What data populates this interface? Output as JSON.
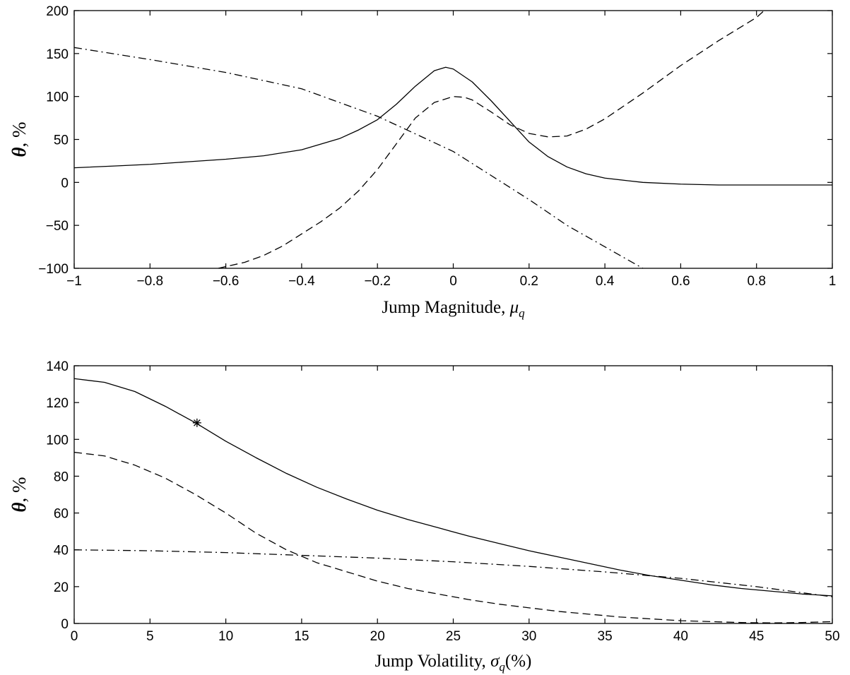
{
  "chart_data": [
    {
      "type": "line",
      "title": "",
      "xlabel": "Jump Magnitude, ",
      "xlabel_symbol": "μ",
      "xlabel_sub": "q",
      "xlabel_tail": "",
      "ylabel_symbol": "θ",
      "ylabel_tail": ", %",
      "xlim": [
        -1,
        1
      ],
      "ylim": [
        -100,
        200
      ],
      "xticks": [
        -1,
        -0.8,
        -0.6,
        -0.4,
        -0.2,
        0,
        0.2,
        0.4,
        0.6,
        0.8,
        1
      ],
      "xtick_labels": [
        "−1",
        "−0.8",
        "−0.6",
        "−0.4",
        "−0.2",
        "0",
        "0.2",
        "0.4",
        "0.6",
        "0.8",
        "1"
      ],
      "yticks": [
        -100,
        -50,
        0,
        50,
        100,
        150,
        200
      ],
      "ytick_labels": [
        "−100",
        "−50",
        "0",
        "50",
        "100",
        "150",
        "200"
      ],
      "grid": false,
      "series": [
        {
          "style": "solid",
          "x": [
            -1,
            -0.9,
            -0.8,
            -0.7,
            -0.6,
            -0.5,
            -0.4,
            -0.3,
            -0.25,
            -0.2,
            -0.15,
            -0.1,
            -0.05,
            -0.02,
            0,
            0.05,
            0.1,
            0.15,
            0.2,
            0.25,
            0.3,
            0.35,
            0.4,
            0.5,
            0.6,
            0.7,
            0.8,
            0.9,
            1
          ],
          "y": [
            17,
            19,
            21,
            24,
            27,
            31,
            38,
            51,
            61,
            73,
            91,
            112,
            130,
            134,
            132,
            117,
            95,
            71,
            47,
            30,
            18,
            10,
            5,
            0,
            -2,
            -3,
            -3,
            -3,
            -3
          ]
        },
        {
          "style": "dashed",
          "x": [
            -0.62,
            -0.55,
            -0.5,
            -0.45,
            -0.4,
            -0.35,
            -0.3,
            -0.25,
            -0.2,
            -0.15,
            -0.1,
            -0.05,
            0,
            0.03,
            0.05,
            0.1,
            0.15,
            0.2,
            0.25,
            0.3,
            0.35,
            0.4,
            0.5,
            0.6,
            0.7,
            0.8,
            0.82
          ],
          "y": [
            -100,
            -93,
            -85,
            -74,
            -60,
            -46,
            -30,
            -10,
            15,
            45,
            75,
            93,
            100,
            99,
            96,
            82,
            67,
            57,
            53,
            54,
            62,
            74,
            104,
            136,
            165,
            192,
            200
          ]
        },
        {
          "style": "dashdot",
          "x": [
            -1,
            -0.8,
            -0.6,
            -0.4,
            -0.2,
            0,
            0.2,
            0.3,
            0.4,
            0.5
          ],
          "y": [
            157,
            143,
            128,
            109,
            77,
            36,
            -20,
            -50,
            -75,
            -100
          ]
        }
      ]
    },
    {
      "type": "line",
      "title": "",
      "xlabel": "Jump Volatility, ",
      "xlabel_symbol": "σ",
      "xlabel_sub": "q",
      "xlabel_tail": "(%)",
      "ylabel_symbol": "θ",
      "ylabel_tail": ", %",
      "xlim": [
        0,
        50
      ],
      "ylim": [
        0,
        140
      ],
      "xticks": [
        0,
        5,
        10,
        15,
        20,
        25,
        30,
        35,
        40,
        45,
        50
      ],
      "xtick_labels": [
        "0",
        "5",
        "10",
        "15",
        "20",
        "25",
        "30",
        "35",
        "40",
        "45",
        "50"
      ],
      "yticks": [
        0,
        20,
        40,
        60,
        80,
        100,
        120,
        140
      ],
      "ytick_labels": [
        "0",
        "20",
        "40",
        "60",
        "80",
        "100",
        "120",
        "140"
      ],
      "grid": false,
      "series": [
        {
          "style": "solid",
          "x": [
            0,
            2,
            4,
            6,
            8,
            10,
            12,
            14,
            16,
            18,
            20,
            22,
            24,
            26,
            28,
            30,
            32,
            34,
            36,
            38,
            40,
            42,
            44,
            46,
            48,
            50
          ],
          "y": [
            133,
            131,
            126,
            118,
            109,
            99,
            90,
            81.5,
            74,
            67.5,
            61.5,
            56.5,
            52,
            47.5,
            43.5,
            39.5,
            36,
            32.5,
            29,
            26,
            23.5,
            21,
            19,
            17.5,
            16,
            15
          ]
        },
        {
          "style": "dashed",
          "x": [
            0,
            2,
            4,
            6,
            8,
            10,
            12,
            14,
            16,
            18,
            20,
            22,
            24,
            26,
            28,
            30,
            32,
            34,
            36,
            38,
            40,
            42,
            44,
            46,
            48,
            50
          ],
          "y": [
            93,
            91,
            86,
            79,
            70,
            60,
            49,
            40,
            33,
            28,
            23,
            19,
            16,
            13,
            10.5,
            8.5,
            6.5,
            5,
            3.5,
            2.5,
            1.5,
            1,
            0.5,
            0.3,
            0.5,
            1
          ]
        },
        {
          "style": "dashdot",
          "x": [
            0,
            5,
            10,
            15,
            20,
            25,
            30,
            35,
            40,
            45,
            50
          ],
          "y": [
            40,
            39.5,
            38.5,
            37,
            35.5,
            33.5,
            31,
            28,
            24.5,
            20,
            14.5
          ]
        }
      ],
      "marker": {
        "symbol": "*",
        "x": 8.1,
        "y": 109
      }
    }
  ]
}
